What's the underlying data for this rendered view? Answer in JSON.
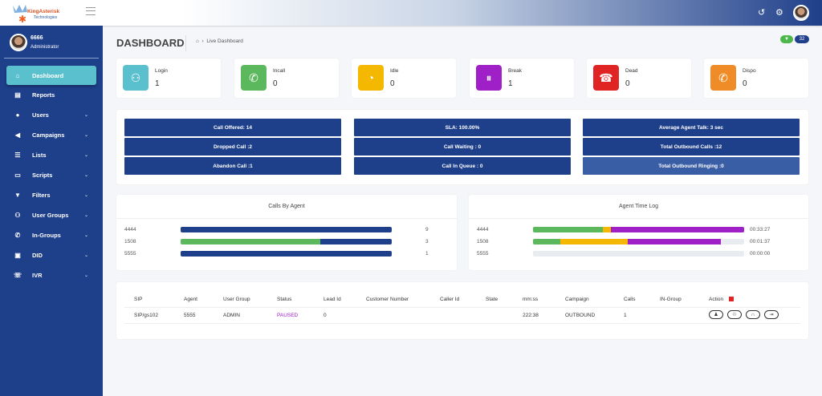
{
  "brand": {
    "logo_text": "KingAsterisk Technologies"
  },
  "user": {
    "name": "6666",
    "role": "Administrator"
  },
  "sidebar": {
    "items": [
      {
        "label": "Dashboard",
        "icon": "home-icon",
        "active": true,
        "chevron": false
      },
      {
        "label": "Reports",
        "icon": "file-icon",
        "chevron": false
      },
      {
        "label": "Users",
        "icon": "user-icon",
        "chevron": true
      },
      {
        "label": "Campaigns",
        "icon": "megaphone-icon",
        "chevron": true
      },
      {
        "label": "Lists",
        "icon": "list-icon",
        "chevron": true
      },
      {
        "label": "Scripts",
        "icon": "script-icon",
        "chevron": true
      },
      {
        "label": "Filters",
        "icon": "filter-icon",
        "chevron": true
      },
      {
        "label": "User Groups",
        "icon": "users-icon",
        "chevron": true
      },
      {
        "label": "In-Groups",
        "icon": "phone-icon",
        "chevron": true
      },
      {
        "label": "DID",
        "icon": "did-icon",
        "chevron": true
      },
      {
        "label": "IVR",
        "icon": "ivr-icon",
        "chevron": true
      }
    ]
  },
  "header": {
    "title": "DASHBOARD",
    "breadcrumb": "Live Dashboard",
    "badge_count": "32"
  },
  "stats": [
    {
      "label": "Login",
      "value": "1",
      "color": "#5bc0ce",
      "icon": "users-icon"
    },
    {
      "label": "Incall",
      "value": "0",
      "color": "#5cb85c",
      "icon": "incoming-call-icon"
    },
    {
      "label": "Idle",
      "value": "0",
      "color": "#f5b800",
      "icon": "user-clock-icon"
    },
    {
      "label": "Break",
      "value": "1",
      "color": "#a020c8",
      "icon": "pause-phone-icon"
    },
    {
      "label": "Dead",
      "value": "0",
      "color": "#e02424",
      "icon": "hangup-icon"
    },
    {
      "label": "Dispo",
      "value": "0",
      "color": "#f08c28",
      "icon": "call-end-icon"
    }
  ],
  "summary": [
    [
      "Call Offered: 14",
      "SLA: 100.00%",
      "Average Agent Talk: 3 sec"
    ],
    [
      "Dropped Call :2",
      "Call Waiting : 0",
      "Total Outbound Calls :12"
    ],
    [
      "Abandon Call :1",
      "Call In Queue : 0",
      "Total Outbound Ringing :0"
    ]
  ],
  "calls_by_agent": {
    "title": "Calls By Agent",
    "rows": [
      {
        "agent": "4444",
        "value": "9",
        "segments": [
          {
            "pct": 100,
            "color": "#1e3f8a"
          }
        ]
      },
      {
        "agent": "1508",
        "value": "3",
        "segments": [
          {
            "pct": 66,
            "color": "#5cb85c"
          },
          {
            "pct": 34,
            "color": "#1e3f8a"
          }
        ]
      },
      {
        "agent": "5555",
        "value": "1",
        "segments": [
          {
            "pct": 100,
            "color": "#1e3f8a"
          }
        ]
      }
    ]
  },
  "agent_time_log": {
    "title": "Agent Time Log",
    "rows": [
      {
        "agent": "4444",
        "value": "00:33:27",
        "segments": [
          {
            "pct": 33,
            "color": "#5cb85c"
          },
          {
            "pct": 4,
            "color": "#f5b800"
          },
          {
            "pct": 63,
            "color": "#a020c8"
          }
        ]
      },
      {
        "agent": "1508",
        "value": "00:01:37",
        "segments": [
          {
            "pct": 13,
            "color": "#5cb85c"
          },
          {
            "pct": 32,
            "color": "#f5b800"
          },
          {
            "pct": 44,
            "color": "#a020c8"
          }
        ]
      },
      {
        "agent": "5555",
        "value": "00:00:00",
        "segments": []
      }
    ]
  },
  "table": {
    "headers": [
      "SIP",
      "Agent",
      "User Group",
      "Status",
      "Lead Id",
      "Customer Number",
      "Caller Id",
      "State",
      "mm:ss",
      "Campaign",
      "Calls",
      "IN-Group",
      "Action"
    ],
    "rows": [
      [
        "SIP/gs102",
        "5555",
        "ADMIN",
        "PAUSED",
        "0",
        "",
        "",
        "",
        "222:38",
        "OUTBOUND",
        "1",
        ""
      ]
    ],
    "status_color": "#a020c8"
  }
}
